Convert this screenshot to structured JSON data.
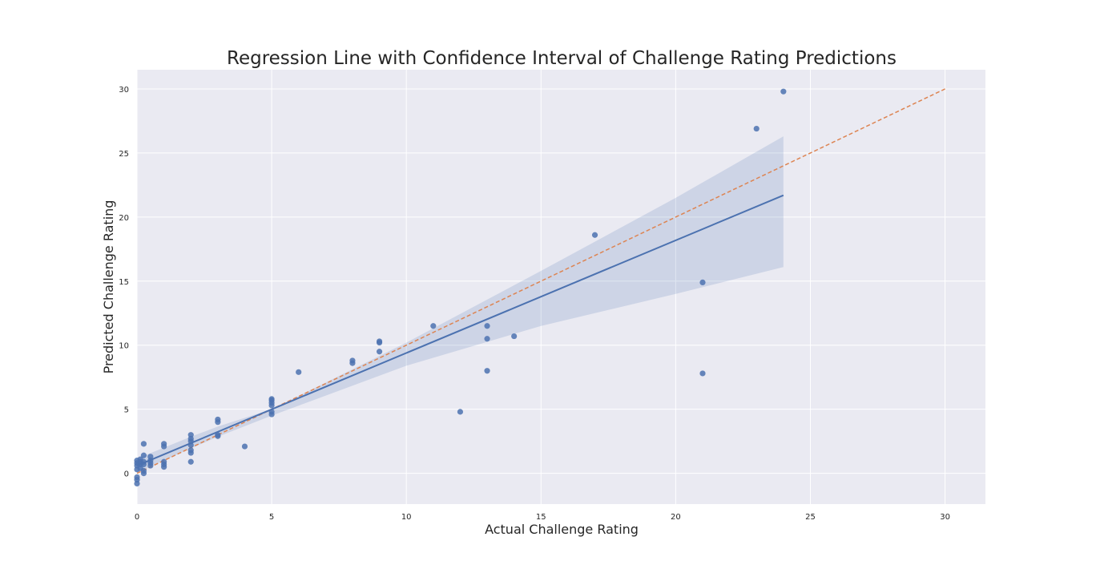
{
  "chart_data": {
    "type": "scatter",
    "title": "Regression Line with Confidence Interval of Challenge Rating Predictions",
    "xlabel": "Actual Challenge Rating",
    "ylabel": "Predicted Challenge Rating",
    "xlim": [
      0,
      31.5
    ],
    "ylim": [
      -2.4,
      31.5
    ],
    "xticks": [
      0,
      5,
      10,
      15,
      20,
      25,
      30
    ],
    "yticks": [
      0,
      5,
      10,
      15,
      20,
      25,
      30
    ],
    "grid": true,
    "colors": {
      "background": "#eaeaf2",
      "grid": "#ffffff",
      "points": "#4c72b0",
      "regression": "#4c72b0",
      "band": "#4c72b0",
      "identity": "#dd8452"
    },
    "series": [
      {
        "kind": "points",
        "points": [
          [
            0,
            -0.8
          ],
          [
            0,
            -0.5
          ],
          [
            0,
            -0.3
          ],
          [
            0,
            0.3
          ],
          [
            0,
            0.6
          ],
          [
            0,
            0.8
          ],
          [
            0,
            1.0
          ],
          [
            0.125,
            0.4
          ],
          [
            0.125,
            0.7
          ],
          [
            0.125,
            0.9
          ],
          [
            0.125,
            1.1
          ],
          [
            0.25,
            0.0
          ],
          [
            0.25,
            0.2
          ],
          [
            0.25,
            0.7
          ],
          [
            0.25,
            0.9
          ],
          [
            0.25,
            1.4
          ],
          [
            0.25,
            2.3
          ],
          [
            0.5,
            0.6
          ],
          [
            0.5,
            0.8
          ],
          [
            0.5,
            1.0
          ],
          [
            0.5,
            1.3
          ],
          [
            1,
            0.5
          ],
          [
            1,
            0.7
          ],
          [
            1,
            0.9
          ],
          [
            1,
            2.1
          ],
          [
            1,
            2.3
          ],
          [
            2,
            0.9
          ],
          [
            2,
            1.6
          ],
          [
            2,
            1.8
          ],
          [
            2,
            2.2
          ],
          [
            2,
            2.5
          ],
          [
            2,
            2.7
          ],
          [
            2,
            3.0
          ],
          [
            3,
            2.9
          ],
          [
            3,
            3.0
          ],
          [
            3,
            4.0
          ],
          [
            3,
            4.2
          ],
          [
            4,
            2.1
          ],
          [
            5,
            4.6
          ],
          [
            5,
            4.8
          ],
          [
            5,
            5.3
          ],
          [
            5,
            5.5
          ],
          [
            5,
            5.7
          ],
          [
            5,
            5.8
          ],
          [
            6,
            7.9
          ],
          [
            8,
            8.6
          ],
          [
            8,
            8.8
          ],
          [
            9,
            9.5
          ],
          [
            9,
            10.2
          ],
          [
            9,
            10.3
          ],
          [
            11,
            11.5
          ],
          [
            12,
            4.8
          ],
          [
            13,
            8.0
          ],
          [
            13,
            10.5
          ],
          [
            13,
            11.5
          ],
          [
            14,
            10.7
          ],
          [
            17,
            18.6
          ],
          [
            21,
            7.8
          ],
          [
            21,
            14.9
          ],
          [
            23,
            26.9
          ],
          [
            24,
            29.8
          ]
        ]
      },
      {
        "kind": "regression",
        "x": [
          0,
          24
        ],
        "y": [
          0.6,
          21.7
        ]
      },
      {
        "kind": "confidence-band",
        "x": [
          0,
          2,
          3,
          5,
          10,
          15,
          20,
          24
        ],
        "lower": [
          0.05,
          1.95,
          2.85,
          4.5,
          8.4,
          11.5,
          14.0,
          16.1
        ],
        "upper": [
          1.15,
          2.85,
          3.65,
          5.0,
          10.2,
          15.8,
          21.5,
          26.3
        ]
      },
      {
        "kind": "identity",
        "x": [
          0,
          30
        ],
        "y": [
          0,
          30
        ]
      }
    ]
  }
}
